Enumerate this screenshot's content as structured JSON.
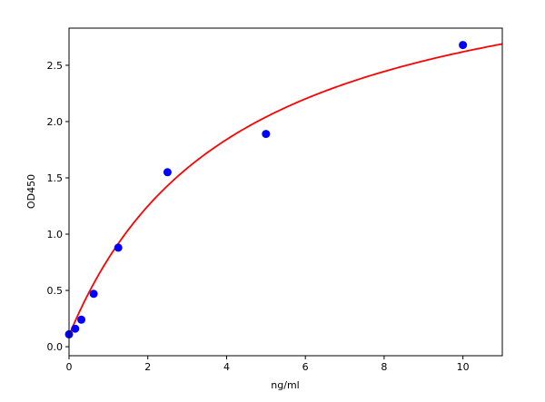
{
  "chart_data": {
    "type": "scatter",
    "title": "",
    "xlabel": "ng/ml",
    "ylabel": "OD450",
    "xlim": [
      0,
      11
    ],
    "ylim": [
      -0.08,
      2.83
    ],
    "xticks": [
      0,
      2,
      4,
      6,
      8,
      10
    ],
    "xtick_labels": [
      "0",
      "2",
      "4",
      "6",
      "8",
      "10"
    ],
    "yticks": [
      0,
      0.5,
      1.0,
      1.5,
      2.0,
      2.5
    ],
    "ytick_labels": [
      "0.0",
      "0.5",
      "1.0",
      "1.5",
      "2.0",
      "2.5"
    ],
    "grid": false,
    "legend": "none",
    "series": [
      {
        "kind": "points",
        "color": "#0000ff",
        "x": [
          0,
          0.156,
          0.3125,
          0.625,
          1.25,
          2.5,
          5,
          10
        ],
        "y": [
          0.11,
          0.16,
          0.24,
          0.47,
          0.88,
          1.55,
          1.89,
          2.68
        ]
      },
      {
        "kind": "fit-curve",
        "color": "#ff0000",
        "model": "y = y0 + vmax*x/(k + x)",
        "params": {
          "y0": 0.1,
          "vmax": 3.59,
          "k": 4.25
        }
      }
    ]
  }
}
